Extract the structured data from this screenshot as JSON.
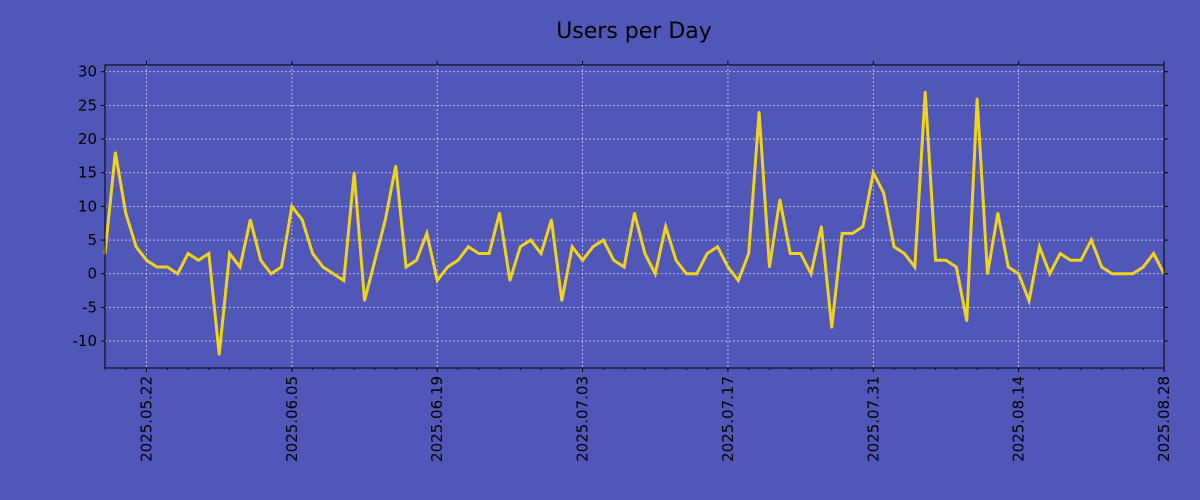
{
  "chart_data": {
    "type": "line",
    "title": "Users per Day",
    "xlabel": "",
    "ylabel": "",
    "start_date": "2025-05-18",
    "end_date": "2025-08-28",
    "ylim": [
      -14,
      31
    ],
    "yticks": [
      -10,
      -5,
      0,
      5,
      10,
      15,
      20,
      25,
      30
    ],
    "xticks": [
      {
        "day": 4,
        "label": "2025.05.22"
      },
      {
        "day": 18,
        "label": "2025.06.05"
      },
      {
        "day": 32,
        "label": "2025.06.19"
      },
      {
        "day": 46,
        "label": "2025.07.03"
      },
      {
        "day": 60,
        "label": "2025.07.17"
      },
      {
        "day": 74,
        "label": "2025.07.31"
      },
      {
        "day": 88,
        "label": "2025.08.14"
      },
      {
        "day": 102,
        "label": "2025.08.28"
      }
    ],
    "grid": true,
    "colors": {
      "background": "#5057b8",
      "plot": "#5057b8",
      "line": "#f2d31b",
      "grid": "#d0d3f0",
      "axis": "#000000"
    },
    "series": [
      {
        "name": "Users",
        "values": [
          3,
          18,
          9,
          4,
          2,
          1,
          1,
          0,
          3,
          2,
          3,
          -12,
          3,
          1,
          8,
          2,
          0,
          1,
          10,
          8,
          3,
          1,
          0,
          -1,
          15,
          -4,
          2,
          8,
          16,
          1,
          2,
          6,
          -1,
          1,
          2,
          4,
          3,
          3,
          9,
          -1,
          4,
          5,
          3,
          8,
          -4,
          4,
          2,
          4,
          5,
          2,
          1,
          9,
          3,
          0,
          7,
          2,
          0,
          0,
          3,
          4,
          1,
          -1,
          3,
          24,
          1,
          11,
          3,
          3,
          0,
          7,
          -8,
          6,
          6,
          7,
          15,
          12,
          4,
          3,
          1,
          27,
          2,
          2,
          1,
          -7,
          26,
          0,
          9,
          1,
          0,
          -4,
          4,
          0,
          3,
          2,
          2,
          5,
          1,
          0,
          0,
          0,
          1,
          3,
          0
        ]
      }
    ]
  }
}
